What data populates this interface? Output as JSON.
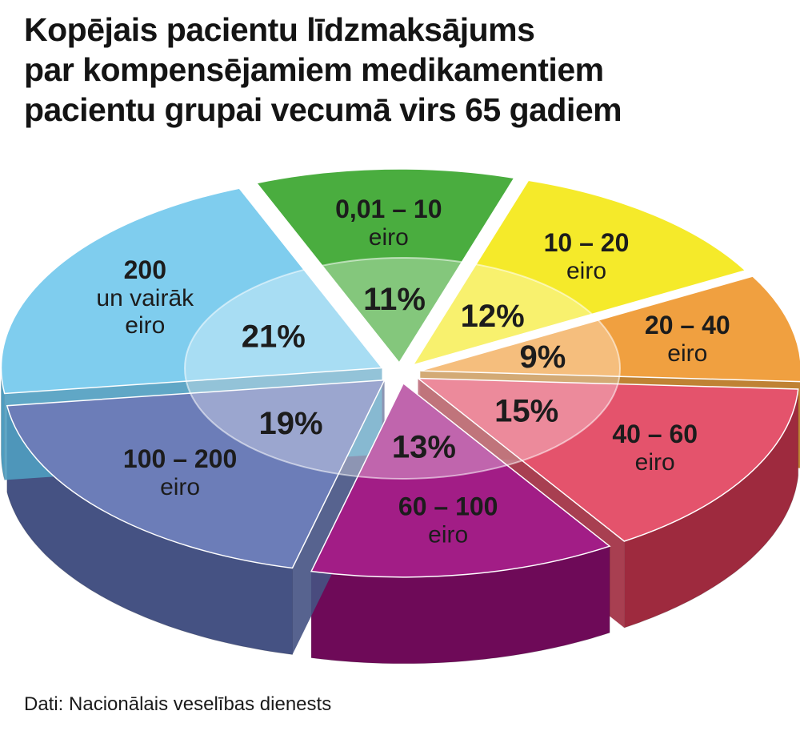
{
  "title_lines": [
    "Kopējais pacientu līdzmaksājums",
    "par kompensējamiem medikamentiem",
    "pacientu grupai vecumā virs 65 gadiem"
  ],
  "source": "Dati: Nacionālais veselības dienests",
  "chart_data": {
    "type": "pie",
    "title": "Kopējais pacientu līdzmaksājums par kompensējamiem medikamentiem pacientu grupai vecumā virs 65 gadiem",
    "unit": "%",
    "slices": [
      {
        "range": "0,01 – 10",
        "unit": "eiro",
        "value": 11,
        "percent_label": "11%",
        "color": "#4aad3f",
        "side_color": "#2c7a27"
      },
      {
        "range": "10 – 20",
        "unit": "eiro",
        "value": 12,
        "percent_label": "12%",
        "color": "#f5ea2a",
        "side_color": "#b8ad12"
      },
      {
        "range": "20 – 40",
        "unit": "eiro",
        "value": 9,
        "percent_label": "9%",
        "color": "#f0a040",
        "side_color": "#b8741e"
      },
      {
        "range": "40 – 60",
        "unit": "eiro",
        "value": 15,
        "percent_label": "15%",
        "color": "#e4536c",
        "side_color": "#9e2a3e"
      },
      {
        "range": "60 – 100",
        "unit": "eiro",
        "value": 13,
        "percent_label": "13%",
        "color": "#a21d86",
        "side_color": "#6e0a58"
      },
      {
        "range": "100 – 200",
        "unit": "eiro",
        "value": 19,
        "percent_label": "19%",
        "color": "#6c7db8",
        "side_color": "#455283"
      },
      {
        "range": "200",
        "range_line2": "un vairāk",
        "unit": "eiro",
        "value": 21,
        "percent_label": "21%",
        "color": "#7fcdee",
        "side_color": "#4f9dc0"
      }
    ]
  }
}
